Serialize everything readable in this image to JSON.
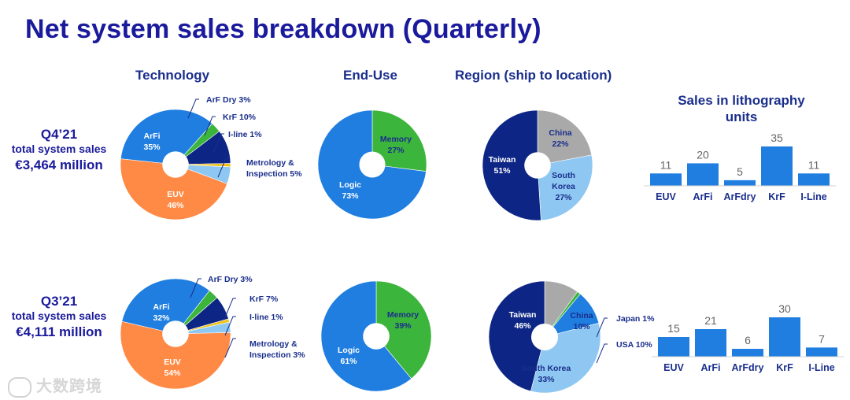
{
  "title": "Net system sales breakdown (Quarterly)",
  "headers": {
    "technology": "Technology",
    "end_use": "End-Use",
    "region": "Region (ship to location)",
    "lithography": "Sales in lithography units"
  },
  "rows": [
    {
      "quarter": "Q4’21",
      "subtitle": "total system sales",
      "value": "€3,464 million"
    },
    {
      "quarter": "Q3’21",
      "subtitle": "total system sales",
      "value": "€4,111 million"
    }
  ],
  "watermark": "大数跨境",
  "colors": {
    "title": "#1a1a9c",
    "header": "#1a2e8c",
    "arfi": "#1f7ee0",
    "arfdry": "#3cb53c",
    "krf": "#0d2685",
    "iline": "#f2c11a",
    "metrology": "#8ec8f2",
    "euv": "#ff8a45",
    "memory": "#3cb53c",
    "logic": "#1f7ee0",
    "taiwan": "#0d2685",
    "china": "#a9a9a9",
    "south_korea": "#8ec8f2",
    "japan": "#3cb53c",
    "usa": "#1f7ee0",
    "bar": "#1f7ee0"
  },
  "chart_data": [
    {
      "type": "pie",
      "title": "Technology",
      "period": "Q4’21",
      "slices": [
        {
          "label": "ArFi",
          "value": 35
        },
        {
          "label": "ArF Dry",
          "value": 3
        },
        {
          "label": "KrF",
          "value": 10
        },
        {
          "label": "I-line",
          "value": 1
        },
        {
          "label": "Metrology & Inspection",
          "value": 5
        },
        {
          "label": "EUV",
          "value": 46
        }
      ]
    },
    {
      "type": "pie",
      "title": "End-Use",
      "period": "Q4’21",
      "slices": [
        {
          "label": "Memory",
          "value": 27
        },
        {
          "label": "Logic",
          "value": 73
        }
      ]
    },
    {
      "type": "pie",
      "title": "Region (ship to location)",
      "period": "Q4’21",
      "slices": [
        {
          "label": "China",
          "value": 22
        },
        {
          "label": "South Korea",
          "value": 27
        },
        {
          "label": "Taiwan",
          "value": 51
        }
      ]
    },
    {
      "type": "bar",
      "title": "Sales in lithography units",
      "period": "Q4’21",
      "categories": [
        "EUV",
        "ArFi",
        "ArFdry",
        "KrF",
        "I-Line"
      ],
      "values": [
        11,
        20,
        5,
        35,
        11
      ]
    },
    {
      "type": "pie",
      "title": "Technology",
      "period": "Q3’21",
      "slices": [
        {
          "label": "ArFi",
          "value": 32
        },
        {
          "label": "ArF Dry",
          "value": 3
        },
        {
          "label": "KrF",
          "value": 7
        },
        {
          "label": "I-line",
          "value": 1
        },
        {
          "label": "Metrology & Inspection",
          "value": 3
        },
        {
          "label": "EUV",
          "value": 54
        }
      ]
    },
    {
      "type": "pie",
      "title": "End-Use",
      "period": "Q3’21",
      "slices": [
        {
          "label": "Memory",
          "value": 39
        },
        {
          "label": "Logic",
          "value": 61
        }
      ]
    },
    {
      "type": "pie",
      "title": "Region (ship to location)",
      "period": "Q3’21",
      "slices": [
        {
          "label": "China",
          "value": 10
        },
        {
          "label": "Japan",
          "value": 1
        },
        {
          "label": "USA",
          "value": 10
        },
        {
          "label": "South Korea",
          "value": 33
        },
        {
          "label": "Taiwan",
          "value": 46
        }
      ]
    },
    {
      "type": "bar",
      "title": "Sales in lithography units",
      "period": "Q3’21",
      "categories": [
        "EUV",
        "ArFi",
        "ArFdry",
        "KrF",
        "I-Line"
      ],
      "values": [
        15,
        21,
        6,
        30,
        7
      ]
    }
  ]
}
